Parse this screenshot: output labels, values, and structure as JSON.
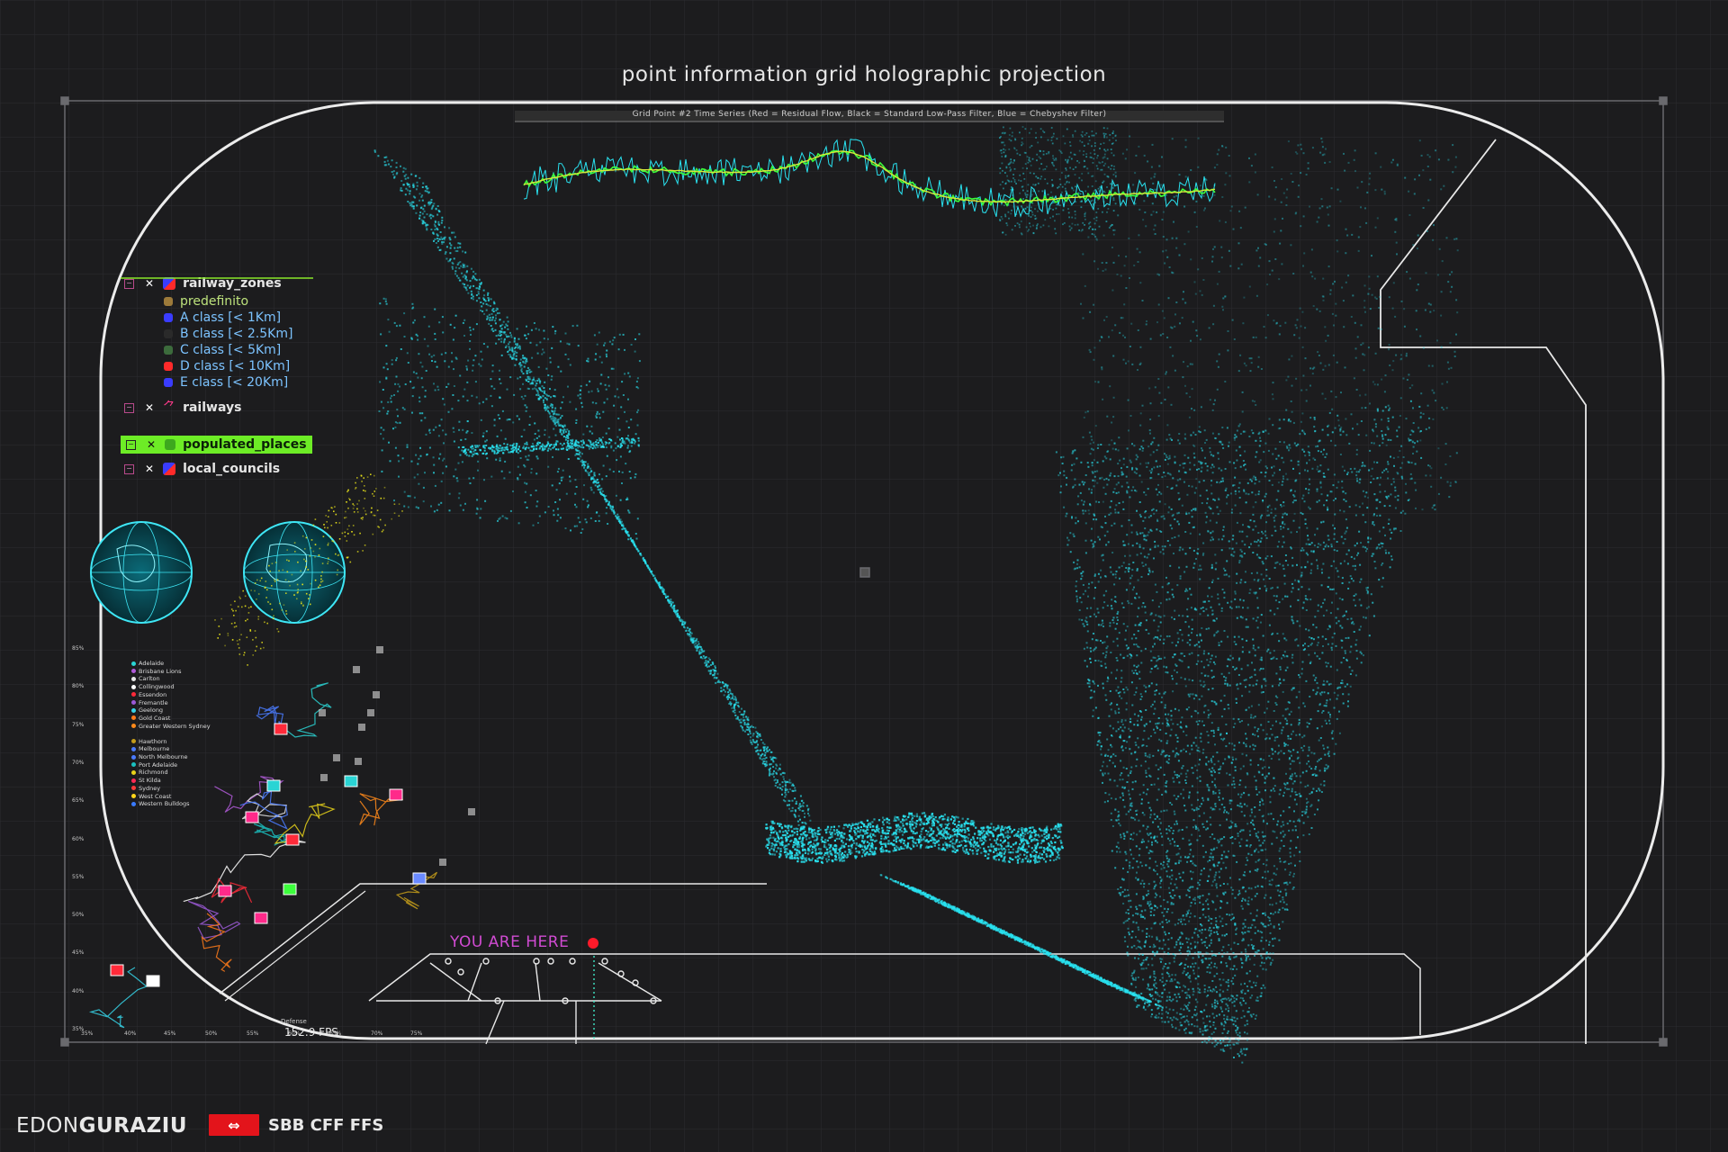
{
  "title": "point information grid holographic projection",
  "timeseries_caption": "Grid Point #2 Time Series (Red = Residual Flow, Black = Standard Low-Pass Filter, Blue = Chebyshev Filter)",
  "legend": {
    "groups": [
      {
        "label": "railway_zones",
        "classes": [
          {
            "label": "predefinito",
            "color": "#9c7a3a"
          },
          {
            "label": "A class [< 1Km]",
            "color": "#3a3cff"
          },
          {
            "label": "B class [< 2.5Km]",
            "color": "#2a2a2a"
          },
          {
            "label": "C class [< 5Km]",
            "color": "#3c6b3c"
          },
          {
            "label": "D class [< 10Km]",
            "color": "#ff2a2a"
          },
          {
            "label": "E class [< 20Km]",
            "color": "#3a3cff"
          }
        ]
      },
      {
        "label": "railways"
      },
      {
        "label": "populated_places",
        "highlight": true
      },
      {
        "label": "local_councils"
      }
    ]
  },
  "teams": [
    "Adelaide",
    "Brisbane Lions",
    "Carlton",
    "Collingwood",
    "Essendon",
    "Fremantle",
    "Geelong",
    "Gold Coast",
    "Greater Western Sydney",
    "Hawthorn",
    "Melbourne",
    "North Melbourne",
    "Port Adelaide",
    "Richmond",
    "St Kilda",
    "Sydney",
    "West Coast",
    "Western Bulldogs"
  ],
  "team_colors": [
    "#2ad4d4",
    "#b05bd8",
    "#e8e8e8",
    "#ffffff",
    "#ff2a3a",
    "#9b59d6",
    "#36d4e8",
    "#ff7b1a",
    "#ff8a1a",
    "#c59d1a",
    "#4a7bff",
    "#4a7bff",
    "#1ac0c0",
    "#e8d21a",
    "#ff2a55",
    "#ff3a3a",
    "#ffd51a",
    "#3a7bff"
  ],
  "chart_y_ticks": [
    "85%",
    "80%",
    "75%",
    "70%",
    "65%",
    "60%",
    "55%",
    "50%",
    "45%",
    "40%",
    "35%"
  ],
  "chart_x_ticks": [
    "35%",
    "40%",
    "45%",
    "50%",
    "55%",
    "60%",
    "65%",
    "70%",
    "75%"
  ],
  "chart_x_label": "Defense",
  "you_are_here": "YOU ARE HERE",
  "fps": "152.9 FPS",
  "footer": {
    "name_light": "EDON",
    "name_bold": "GURAZIU",
    "sbb_symbol": "⇔",
    "sbb_text": "SBB CFF FFS"
  },
  "colors": {
    "cyan": "#29e2f0",
    "yellow_line": "#d7e83a",
    "green_line": "#3cff3c",
    "accent_red": "#e3141b",
    "magenta": "#d04bd2"
  }
}
